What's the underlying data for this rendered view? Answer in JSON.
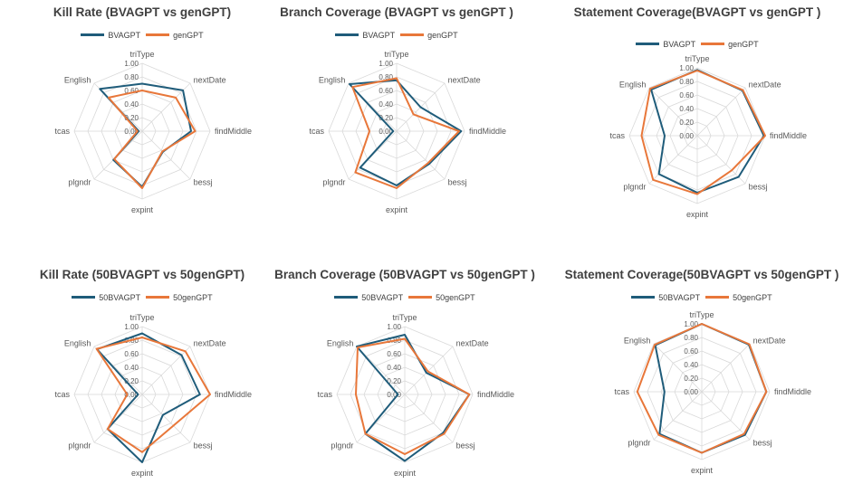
{
  "chart_data": [
    {
      "type": "radar",
      "title": "Kill Rate (BVAGPT vs genGPT)",
      "categories": [
        "triType",
        "nextDate",
        "findMiddle",
        "bessj",
        "expint",
        "plgndr",
        "tcas",
        "English"
      ],
      "ticks": [
        "0.00",
        "0.20",
        "0.40",
        "0.60",
        "0.80",
        "1.00"
      ],
      "rlim": [
        0,
        1
      ],
      "series": [
        {
          "name": "BVAGPT",
          "color": "#1f5c7a",
          "values": [
            0.7,
            0.85,
            0.72,
            0.43,
            0.82,
            0.6,
            0.05,
            0.88
          ]
        },
        {
          "name": "genGPT",
          "color": "#e8773a",
          "values": [
            0.6,
            0.7,
            0.78,
            0.42,
            0.84,
            0.58,
            0.07,
            0.7
          ]
        }
      ]
    },
    {
      "type": "radar",
      "title": "Branch Coverage (BVAGPT vs genGPT )",
      "categories": [
        "triType",
        "nextDate",
        "findMiddle",
        "bessj",
        "expint",
        "plgndr",
        "tcas",
        "English"
      ],
      "ticks": [
        "0.00",
        "0.20",
        "0.40",
        "0.60",
        "0.80",
        "1.00"
      ],
      "rlim": [
        0,
        1
      ],
      "series": [
        {
          "name": "BVAGPT",
          "color": "#1f5c7a",
          "values": [
            0.75,
            0.5,
            0.95,
            0.68,
            0.8,
            0.76,
            0.05,
            0.98
          ]
        },
        {
          "name": "genGPT",
          "color": "#e8773a",
          "values": [
            0.78,
            0.35,
            0.92,
            0.66,
            0.84,
            0.86,
            0.4,
            0.92
          ]
        }
      ]
    },
    {
      "type": "radar",
      "title": "Statement Coverage(BVAGPT vs genGPT )",
      "categories": [
        "triType",
        "nextDate",
        "findMiddle",
        "bessj",
        "expint",
        "plgndr",
        "tcas",
        "English"
      ],
      "ticks": [
        "0.00",
        "0.20",
        "0.40",
        "0.60",
        "0.80",
        "1.00"
      ],
      "rlim": [
        0,
        1
      ],
      "series": [
        {
          "name": "BVAGPT",
          "color": "#1f5c7a",
          "values": [
            0.97,
            0.94,
            0.98,
            0.86,
            0.84,
            0.8,
            0.48,
            0.96
          ]
        },
        {
          "name": "genGPT",
          "color": "#e8773a",
          "values": [
            0.96,
            0.95,
            1.0,
            0.72,
            0.86,
            0.92,
            0.82,
            0.98
          ]
        }
      ]
    },
    {
      "type": "radar",
      "title": "Kill Rate (50BVAGPT vs 50genGPT)",
      "categories": [
        "triType",
        "nextDate",
        "findMiddle",
        "bessj",
        "expint",
        "plgndr",
        "tcas",
        "English"
      ],
      "ticks": [
        "0.00",
        "0.20",
        "0.40",
        "0.60",
        "0.80",
        "1.00"
      ],
      "rlim": [
        0,
        1
      ],
      "series": [
        {
          "name": "50BVAGPT",
          "color": "#1f5c7a",
          "values": [
            0.9,
            0.82,
            0.85,
            0.43,
            1.0,
            0.72,
            0.06,
            0.94
          ]
        },
        {
          "name": "50genGPT",
          "color": "#e8773a",
          "values": [
            0.84,
            0.9,
            1.0,
            0.65,
            0.85,
            0.72,
            0.22,
            0.95
          ]
        }
      ]
    },
    {
      "type": "radar",
      "title": "Branch Coverage (50BVAGPT vs 50genGPT )",
      "categories": [
        "triType",
        "nextDate",
        "findMiddle",
        "bessj",
        "expint",
        "plgndr",
        "tcas",
        "English"
      ],
      "ticks": [
        "0.00",
        "0.20",
        "0.40",
        "0.60",
        "0.80",
        "1.00"
      ],
      "rlim": [
        0,
        1
      ],
      "series": [
        {
          "name": "50BVAGPT",
          "color": "#1f5c7a",
          "values": [
            0.88,
            0.45,
            0.95,
            0.8,
            0.98,
            0.82,
            0.1,
            1.0
          ]
        },
        {
          "name": "50genGPT",
          "color": "#e8773a",
          "values": [
            0.82,
            0.48,
            0.95,
            0.82,
            0.88,
            0.82,
            0.72,
            0.98
          ]
        }
      ]
    },
    {
      "type": "radar",
      "title": "Statement Coverage(50BVAGPT vs 50genGPT )",
      "categories": [
        "triType",
        "nextDate",
        "findMiddle",
        "bessj",
        "expint",
        "plgndr",
        "tcas",
        "English"
      ],
      "ticks": [
        "0.00",
        "0.20",
        "0.40",
        "0.60",
        "0.80",
        "1.00"
      ],
      "rlim": [
        0,
        1
      ],
      "series": [
        {
          "name": "50BVAGPT",
          "color": "#1f5c7a",
          "values": [
            1.0,
            0.98,
            0.95,
            0.9,
            0.9,
            0.88,
            0.55,
            0.97
          ]
        },
        {
          "name": "50genGPT",
          "color": "#e8773a",
          "values": [
            1.0,
            0.99,
            0.95,
            0.88,
            0.9,
            0.9,
            0.95,
            0.98
          ]
        }
      ]
    }
  ]
}
